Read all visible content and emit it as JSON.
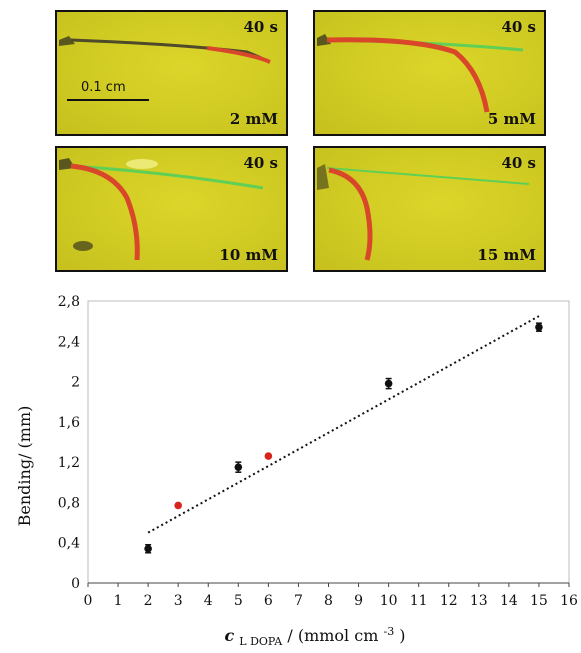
{
  "panels": [
    {
      "time": "40 s",
      "concentration": "2 mM",
      "scale_bar": "0.1 cm"
    },
    {
      "time": "40 s",
      "concentration": "5 mM"
    },
    {
      "time": "40 s",
      "concentration": "10 mM"
    },
    {
      "time": "40 s",
      "concentration": "15 mM"
    }
  ],
  "colors": {
    "background_yellow": "#d2cc25",
    "fiber_red": "#d9472b",
    "fiber_green": "#5fcf56",
    "point_black": "#111111",
    "point_red": "#d7241c"
  },
  "chart_data": {
    "type": "scatter",
    "title": "",
    "xlabel_prefix": "c",
    "xlabel_subscript": "L DOPA",
    "xlabel_suffix": "/ (mmol cm",
    "xlabel_superscript": "-3",
    "xlabel_end": ")",
    "ylabel": "Bending/ (mm)",
    "xlim": [
      0,
      16
    ],
    "ylim": [
      0,
      2.8
    ],
    "x_ticks": [
      "0",
      "1",
      "2",
      "3",
      "4",
      "5",
      "6",
      "7",
      "8",
      "9",
      "10",
      "11",
      "12",
      "13",
      "14",
      "15",
      "16"
    ],
    "y_ticks": [
      "0",
      "0,4",
      "0,8",
      "1,2",
      "1,6",
      "2",
      "2,4",
      "2,8"
    ],
    "grid": false,
    "legend": "none",
    "series": [
      {
        "color": "#111111",
        "points": [
          {
            "x": 2,
            "y": 0.34,
            "err": 0.04
          },
          {
            "x": 5,
            "y": 1.15,
            "err": 0.05
          },
          {
            "x": 10,
            "y": 1.98,
            "err": 0.05
          },
          {
            "x": 15,
            "y": 2.54,
            "err": 0.04
          }
        ]
      },
      {
        "color": "#d7241c",
        "points": [
          {
            "x": 3,
            "y": 0.77
          },
          {
            "x": 6,
            "y": 1.26
          }
        ]
      }
    ],
    "trendline": {
      "style": "dotted",
      "x": [
        2,
        15
      ],
      "y": [
        0.5,
        2.65
      ]
    }
  }
}
